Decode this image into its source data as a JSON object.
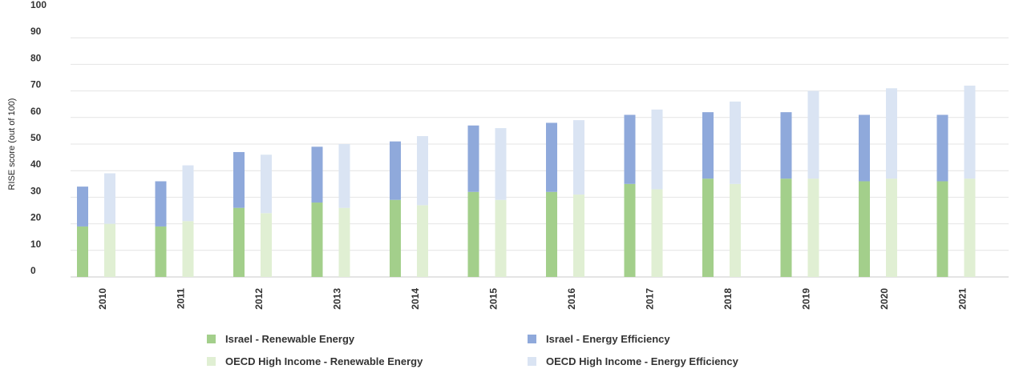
{
  "chart_data": {
    "type": "bar",
    "stacked": true,
    "ylabel": "RISE score (out of 100)",
    "ylim": [
      0,
      100
    ],
    "yticks": [
      0,
      10,
      20,
      30,
      40,
      50,
      60,
      70,
      80,
      90,
      100
    ],
    "grid": true,
    "legend_position": "bottom",
    "categories": [
      "2010",
      "2011",
      "2012",
      "2013",
      "2014",
      "2015",
      "2016",
      "2017",
      "2018",
      "2019",
      "2020",
      "2021"
    ],
    "groups": [
      {
        "name": "Israel",
        "series": [
          {
            "name": "Israel - Renewable Energy",
            "color": "#a3cf8b",
            "values": [
              19,
              19,
              26,
              28,
              29,
              32,
              32,
              35,
              37,
              37,
              36,
              36
            ]
          },
          {
            "name": "Israel - Energy Efficiency",
            "color": "#8fa9db",
            "values": [
              15,
              17,
              21,
              21,
              22,
              25,
              26,
              26,
              25,
              25,
              25,
              25
            ]
          }
        ]
      },
      {
        "name": "OECD High Income",
        "series": [
          {
            "name": "OECD High Income - Renewable Energy",
            "color": "#e0efd3",
            "values": [
              20,
              21,
              24,
              26,
              27,
              29,
              31,
              33,
              35,
              37,
              37,
              37
            ]
          },
          {
            "name": "OECD High Income - Energy Efficiency",
            "color": "#dae4f3",
            "values": [
              19,
              21,
              22,
              24,
              26,
              27,
              28,
              30,
              31,
              33,
              34,
              35
            ]
          }
        ]
      }
    ]
  }
}
